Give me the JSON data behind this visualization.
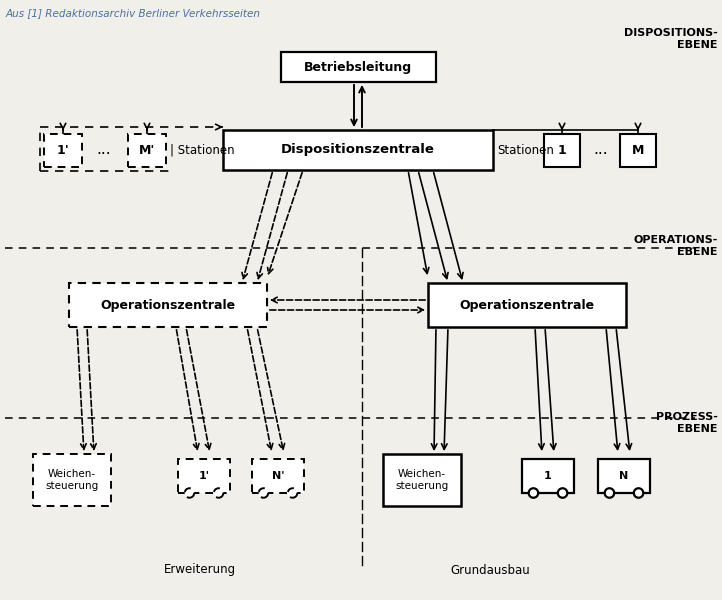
{
  "bg_color": "#f0efea",
  "title_text": "Aus [1] Redaktionsarchiv Berliner Verkehrsseiten",
  "title_color": "#4a6fa5",
  "disp_ebene_label": "DISPOSITIONS-\nEBENE",
  "ops_ebene_label": "OPERATIONS-\nEBENE",
  "prozess_ebene_label": "PROZESS-\nEBENE",
  "betriebsleitung_label": "Betriebsleitung",
  "dispositionszentrale_label": "Dispositionszentrale",
  "operationszentrale_label": "Operationszentrale",
  "weichensteuerung_label": "Weichen-\nsteuerung",
  "erweiterung_label": "Erweiterung",
  "grundausbau_label": "Grundausbau",
  "stationen_left_label": "Stationen",
  "stationen_right_label": "Stationen"
}
